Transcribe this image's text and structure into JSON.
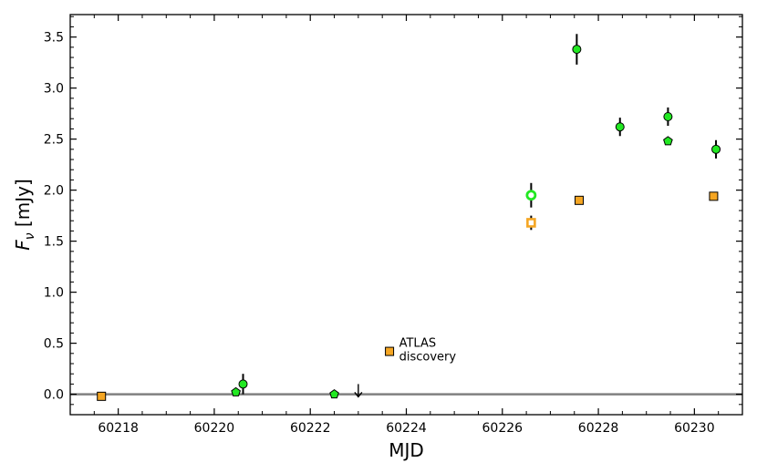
{
  "chart_data": {
    "type": "scatter",
    "title": "",
    "xlabel": "MJD",
    "ylabel_main": "F",
    "ylabel_sub": "ν",
    "ylabel_unit": " [mJy]",
    "xlim": [
      60217.0,
      60231.0
    ],
    "ylim": [
      -0.2,
      3.72
    ],
    "x_ticks": [
      60218,
      60220,
      60222,
      60224,
      60226,
      60228,
      60230
    ],
    "y_ticks": [
      0.0,
      0.5,
      1.0,
      1.5,
      2.0,
      2.5,
      3.0,
      3.5
    ],
    "y_tick_labels": [
      "0.0",
      "0.5",
      "1.0",
      "1.5",
      "2.0",
      "2.5",
      "3.0",
      "3.5"
    ],
    "grid": false,
    "baseline": 0,
    "colors": {
      "green": "#22e822",
      "orange": "#f5a623",
      "baseline": "#808080"
    },
    "series": [
      {
        "marker": "circle-filled",
        "color": "#22e822",
        "points": [
          {
            "x": 60220.6,
            "y": 0.1,
            "err": 0.1
          },
          {
            "x": 60227.55,
            "y": 3.38,
            "err": 0.15
          },
          {
            "x": 60228.45,
            "y": 2.62,
            "err": 0.09
          },
          {
            "x": 60229.45,
            "y": 2.72,
            "err": 0.09
          },
          {
            "x": 60230.45,
            "y": 2.4,
            "err": 0.09
          }
        ]
      },
      {
        "marker": "circle-open",
        "color": "#22e822",
        "points": [
          {
            "x": 60226.6,
            "y": 1.95,
            "err": 0.12
          }
        ]
      },
      {
        "marker": "pentagon",
        "color": "#22e822",
        "points": [
          {
            "x": 60220.45,
            "y": 0.02
          },
          {
            "x": 60222.5,
            "y": 0.0
          },
          {
            "x": 60229.45,
            "y": 2.48
          }
        ]
      },
      {
        "marker": "square-filled",
        "color": "#f5a623",
        "points": [
          {
            "x": 60217.65,
            "y": -0.02
          },
          {
            "x": 60223.65,
            "y": 0.42
          },
          {
            "x": 60227.6,
            "y": 1.9
          },
          {
            "x": 60230.4,
            "y": 1.94
          }
        ]
      },
      {
        "marker": "square-open",
        "color": "#f5a623",
        "points": [
          {
            "x": 60226.6,
            "y": 1.68,
            "err": 0.07
          }
        ]
      }
    ],
    "upper_limits": [
      {
        "x": 60223.0,
        "y": 0.1
      }
    ],
    "annotations": [
      {
        "x": 60223.85,
        "y": 0.42,
        "lines": [
          "ATLAS",
          "discovery"
        ]
      }
    ]
  }
}
